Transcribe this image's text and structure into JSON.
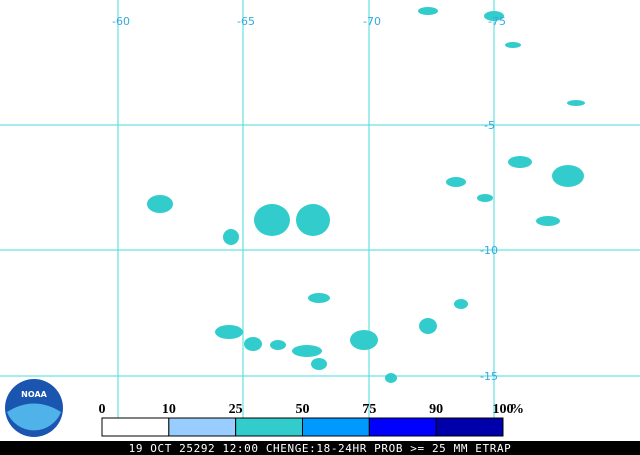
{
  "grid": {
    "longitude_labels": [
      "-60",
      "-65",
      "-70",
      "-75"
    ],
    "latitude_labels": [
      "-5",
      "-10",
      "-15"
    ]
  },
  "legend": {
    "labels": [
      "0",
      "10",
      "25",
      "50",
      "75",
      "90",
      "100"
    ],
    "unit": "%",
    "colors": [
      "#ffffff",
      "#99ccff",
      "#33cccc",
      "#0099ff",
      "#0000ff",
      "#0000aa"
    ]
  },
  "logo": {
    "text": "NOAA"
  },
  "footer": {
    "text": "19 OCT 25292 12:00 CHENGE:18-24HR PROB >= 25 MM ETRAP"
  }
}
